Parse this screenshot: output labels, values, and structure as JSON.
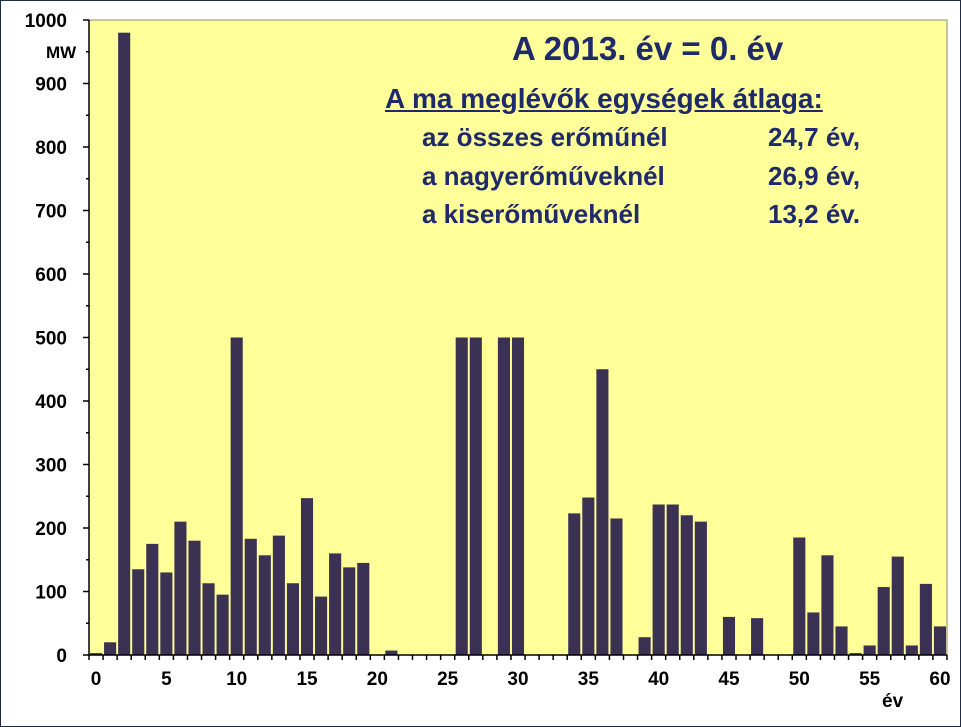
{
  "chart_data": {
    "type": "bar",
    "title": "A 2013. év = 0. év",
    "xlabel": "év",
    "ylabel": "MW",
    "x": [
      0,
      1,
      2,
      3,
      4,
      5,
      6,
      7,
      8,
      9,
      10,
      11,
      12,
      13,
      14,
      15,
      16,
      17,
      18,
      19,
      20,
      21,
      22,
      23,
      24,
      25,
      26,
      27,
      28,
      29,
      30,
      31,
      32,
      33,
      34,
      35,
      36,
      37,
      38,
      39,
      40,
      41,
      42,
      43,
      44,
      45,
      46,
      47,
      48,
      49,
      50,
      51,
      52,
      53,
      54,
      55,
      56,
      57,
      58,
      59,
      60
    ],
    "values": [
      3,
      20,
      980,
      135,
      175,
      130,
      210,
      180,
      113,
      95,
      500,
      183,
      157,
      188,
      113,
      247,
      92,
      160,
      138,
      145,
      0,
      7,
      0,
      0,
      0,
      0,
      500,
      500,
      0,
      500,
      500,
      0,
      0,
      0,
      223,
      248,
      450,
      215,
      0,
      28,
      237,
      237,
      220,
      210,
      0,
      60,
      0,
      58,
      0,
      0,
      185,
      67,
      157,
      45,
      3,
      15,
      107,
      155,
      15,
      112,
      45
    ],
    "xlim": [
      0,
      60
    ],
    "ylim": [
      0,
      1000
    ],
    "x_ticks": [
      0,
      5,
      10,
      15,
      20,
      25,
      30,
      35,
      40,
      45,
      50,
      55,
      60
    ],
    "y_ticks": [
      0,
      100,
      200,
      300,
      400,
      500,
      600,
      700,
      800,
      900,
      1000
    ],
    "grid": false,
    "colors": {
      "plot_bg": "#ffff99",
      "bar": "#3b3153",
      "text": "#1f2a6b"
    },
    "annotations": {
      "title": "A 2013. év = 0. év",
      "subtitle": "A ma meglévők egységek átlaga:",
      "rows": [
        {
          "label": "az összes erőműnél",
          "value": "24,7 év,"
        },
        {
          "label": "a nagyerőműveknél",
          "value": "26,9 év,"
        },
        {
          "label": "a kiserőműveknél",
          "value": "13,2 év."
        }
      ]
    }
  }
}
